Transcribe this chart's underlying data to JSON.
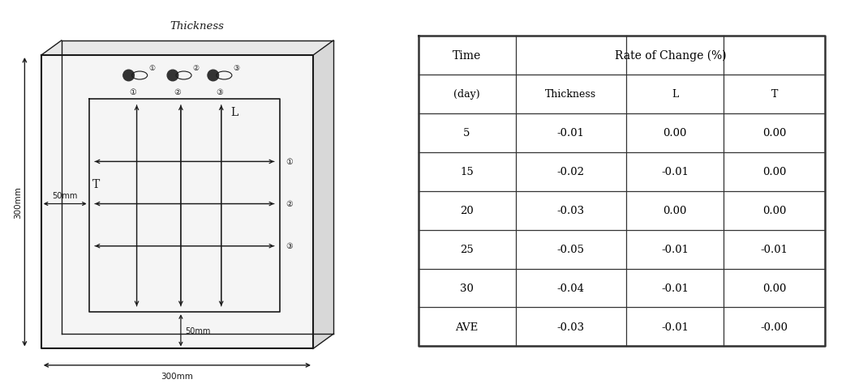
{
  "table_headers_row1_col0": "Time",
  "table_headers_row1_col1": "Rate of Change (%)",
  "table_headers_row2": [
    "(day)",
    "Thickness",
    "L",
    "T"
  ],
  "table_data": [
    [
      "5",
      "-0.01",
      "0.00",
      "0.00"
    ],
    [
      "15",
      "-0.02",
      "-0.01",
      "0.00"
    ],
    [
      "20",
      "-0.03",
      "0.00",
      "0.00"
    ],
    [
      "25",
      "-0.05",
      "-0.01",
      "-0.01"
    ],
    [
      "30",
      "-0.04",
      "-0.01",
      "0.00"
    ],
    [
      "AVE",
      "-0.03",
      "-0.01",
      "-0.00"
    ]
  ],
  "diagram_title": "Thickness",
  "label_L": "L",
  "label_T": "T",
  "label_300h": "300mm",
  "label_300v": "300mm",
  "label_50h": "50mm",
  "label_50v": "50mm",
  "bg_color": "#ffffff",
  "lc": "#1a1a1a",
  "tc": "#333333"
}
